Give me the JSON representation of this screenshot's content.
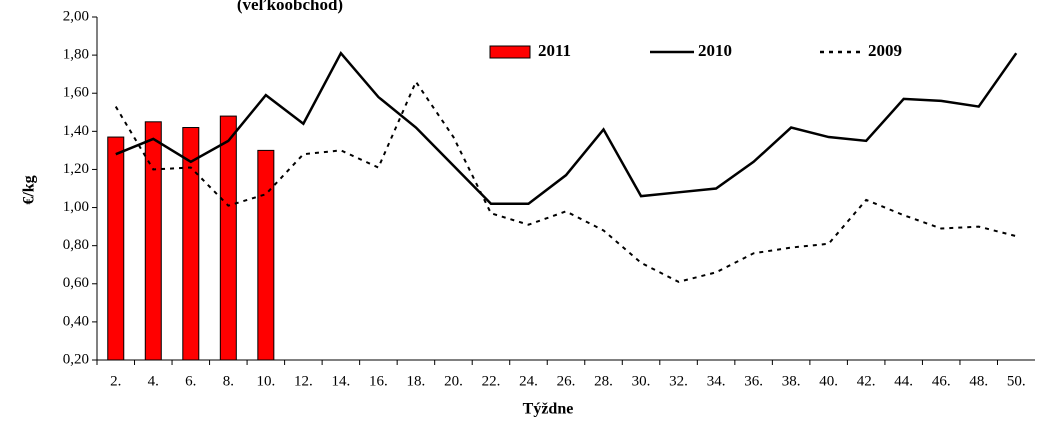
{
  "chart_data": {
    "type": "combo",
    "title": "(veľkoobchod)",
    "y_label": "€/kg",
    "x_label": "Týždne",
    "categories": [
      "2.",
      "4.",
      "6.",
      "8.",
      "10.",
      "12.",
      "14.",
      "16.",
      "18.",
      "20.",
      "22.",
      "24.",
      "26.",
      "28.",
      "30.",
      "32.",
      "34.",
      "36.",
      "38.",
      "40.",
      "42.",
      "44.",
      "46.",
      "48.",
      "50."
    ],
    "series": [
      {
        "name": "2011",
        "type": "bar",
        "color": "#ff0000",
        "values": [
          1.37,
          1.45,
          1.42,
          1.48,
          1.3,
          null,
          null,
          null,
          null,
          null,
          null,
          null,
          null,
          null,
          null,
          null,
          null,
          null,
          null,
          null,
          null,
          null,
          null,
          null,
          null
        ]
      },
      {
        "name": "2010",
        "type": "line",
        "style": "solid",
        "color": "#000000",
        "values": [
          1.28,
          1.36,
          1.24,
          1.35,
          1.59,
          1.44,
          1.81,
          1.58,
          1.42,
          1.22,
          1.02,
          1.02,
          1.17,
          1.41,
          1.06,
          1.08,
          1.1,
          1.24,
          1.42,
          1.37,
          1.35,
          1.57,
          1.56,
          1.53,
          1.81
        ]
      },
      {
        "name": "2009",
        "type": "line",
        "style": "dashed",
        "color": "#000000",
        "values": [
          1.53,
          1.2,
          1.21,
          1.01,
          1.07,
          1.28,
          1.3,
          1.21,
          1.66,
          1.37,
          0.97,
          0.91,
          0.98,
          0.88,
          0.71,
          0.61,
          0.66,
          0.76,
          0.79,
          0.81,
          1.04,
          0.96,
          0.89,
          0.9,
          0.85
        ]
      }
    ],
    "ylim": [
      0.2,
      2.0
    ],
    "yticks": [
      {
        "value": 0.2,
        "label": "0,20"
      },
      {
        "value": 0.4,
        "label": "0,40"
      },
      {
        "value": 0.6,
        "label": "0,60"
      },
      {
        "value": 0.8,
        "label": "0,80"
      },
      {
        "value": 1.0,
        "label": "1,00"
      },
      {
        "value": 1.2,
        "label": "1,20"
      },
      {
        "value": 1.4,
        "label": "1,40"
      },
      {
        "value": 1.6,
        "label": "1,60"
      },
      {
        "value": 1.8,
        "label": "1,80"
      },
      {
        "value": 2.0,
        "label": "2,00"
      }
    ],
    "grid": false,
    "legend": "top"
  }
}
